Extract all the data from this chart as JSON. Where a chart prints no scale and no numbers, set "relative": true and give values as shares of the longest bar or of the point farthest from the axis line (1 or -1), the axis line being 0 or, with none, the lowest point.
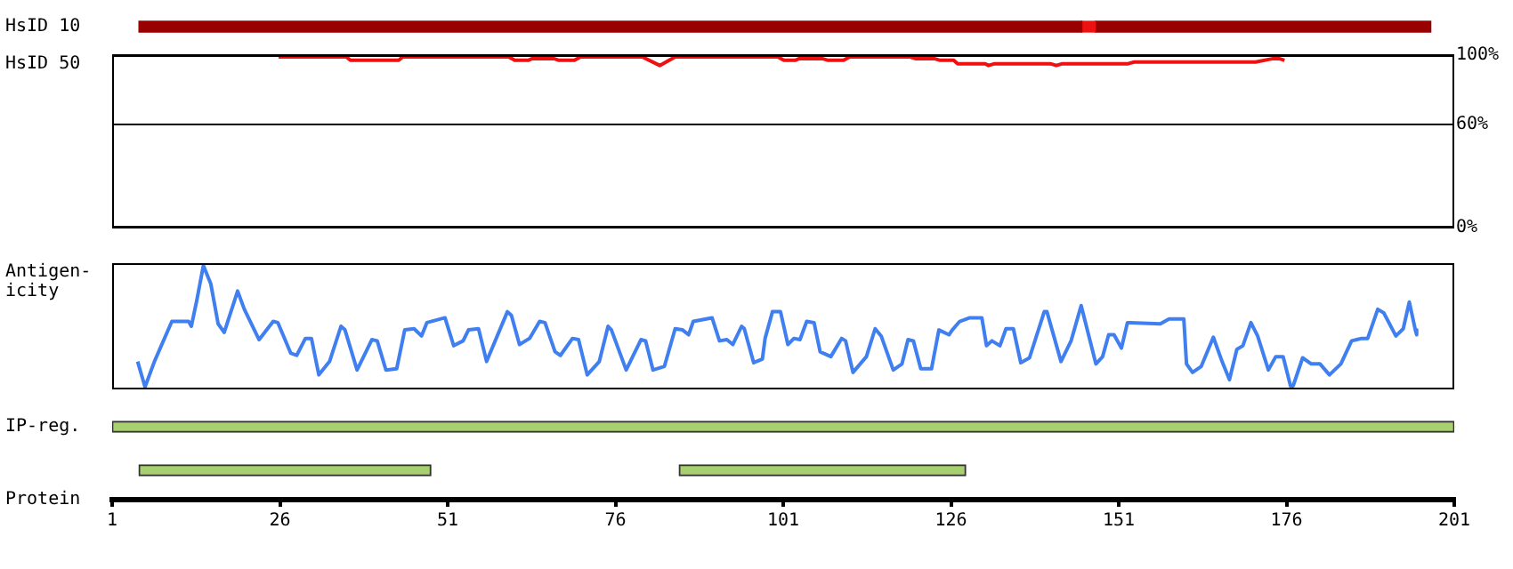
{
  "chart_data": [
    {
      "type": "bar",
      "orientation": "horizontal",
      "categories": [
        "HsID 10"
      ],
      "series": [
        {
          "color": "#990000",
          "base": [
            5
          ],
          "values": [
            140.5
          ]
        },
        {
          "color": "#ee1111",
          "base": [
            145.5
          ],
          "values": [
            2
          ]
        },
        {
          "color": "#990000",
          "base": [
            147.5
          ],
          "values": [
            50
          ]
        }
      ],
      "xlim": [
        1,
        201
      ],
      "tick_labels": "y"
    },
    {
      "type": "line",
      "ylabel": "HsID 50",
      "series": [
        {
          "color": "#ee1111",
          "x": [
            25.8,
            35.9,
            36.5,
            43.7,
            44.3,
            60.1,
            61.0,
            63.0,
            63.6,
            66.8,
            67.6,
            69.9,
            70.8,
            80.0,
            82.6,
            84.9,
            100.2,
            101.1,
            102.8,
            103.4,
            106.8,
            107.7,
            110.0,
            110.9,
            119.8,
            120.7,
            123.5,
            124.4,
            126.4,
            127.0,
            131.1,
            131.6,
            132.5,
            140.8,
            141.7,
            142.6,
            152.4,
            153.3,
            171.4,
            174.0,
            174.9,
            175.7
          ],
          "values": [
            99,
            99,
            97,
            97,
            99,
            99,
            97,
            97,
            98,
            98,
            97,
            97,
            99,
            99,
            94,
            99,
            99,
            97,
            97,
            98,
            98,
            97,
            97,
            99,
            99,
            98,
            98,
            97,
            97,
            95,
            95,
            94,
            95,
            95,
            94,
            95,
            95,
            96,
            96,
            98,
            98,
            97
          ]
        }
      ],
      "xlim": [
        1,
        201
      ],
      "ylim": [
        0,
        100
      ],
      "yticks": [
        {
          "value": 0,
          "label": "0%"
        },
        {
          "value": 60,
          "label": "60%"
        },
        {
          "value": 100,
          "label": "100%"
        }
      ],
      "grid": "y",
      "tick_labels": "y",
      "marker": "none"
    },
    {
      "type": "line",
      "relative": true,
      "ylabel": "Antigen-\nicity",
      "series": [
        {
          "color": "#3f7ff0",
          "x": [
            4.8,
            5.9,
            7.3,
            9.9,
            12.4,
            12.8,
            13.6,
            14.6,
            15.7,
            16.8,
            17.7,
            19.7,
            20.7,
            22.9,
            25.0,
            25.7,
            27.6,
            28.5,
            29.8,
            30.7,
            31.8,
            33.4,
            35.1,
            35.7,
            37.5,
            39.7,
            40.5,
            41.8,
            43.4,
            44.6,
            46.0,
            47.1,
            47.9,
            50.6,
            51.9,
            53.3,
            54.1,
            55.6,
            56.8,
            59.9,
            60.5,
            61.7,
            63.2,
            64.7,
            65.5,
            67.0,
            67.8,
            69.6,
            70.5,
            71.8,
            73.6,
            74.9,
            75.4,
            77.6,
            79.8,
            80.5,
            81.6,
            83.3,
            84.9,
            86.0,
            86.9,
            87.6,
            90.4,
            91.5,
            92.6,
            93.5,
            94.8,
            95.2,
            96.6,
            97.9,
            98.3,
            99.4,
            100.6,
            101.7,
            102.6,
            103.5,
            104.5,
            105.6,
            106.5,
            108.1,
            109.7,
            110.3,
            111.4,
            113.4,
            114.7,
            115.6,
            117.4,
            118.7,
            119.6,
            120.4,
            121.5,
            123.1,
            124.2,
            125.7,
            126.2,
            127.3,
            128.8,
            130.6,
            131.3,
            132.1,
            133.3,
            134.2,
            135.3,
            136.4,
            137.7,
            139.9,
            140.3,
            142.4,
            143.9,
            145.4,
            147.6,
            148.6,
            149.5,
            150.3,
            151.4,
            152.3,
            157.2,
            158.5,
            160.7,
            161.1,
            162.0,
            163.3,
            165.1,
            166.4,
            167.5,
            168.6,
            169.5,
            170.7,
            171.7,
            173.3,
            174.4,
            175.5,
            176.6,
            177.0,
            178.4,
            179.7,
            181.0,
            182.4,
            184.1,
            185.7,
            187.2,
            188.1,
            189.6,
            190.5,
            192.3,
            193.4,
            194.3,
            195.2,
            195.4
          ],
          "values": [
            0.21,
            0.0,
            0.21,
            0.54,
            0.54,
            0.5,
            0.71,
            1.0,
            0.85,
            0.52,
            0.45,
            0.79,
            0.64,
            0.39,
            0.54,
            0.53,
            0.28,
            0.26,
            0.4,
            0.4,
            0.1,
            0.21,
            0.5,
            0.47,
            0.14,
            0.39,
            0.38,
            0.14,
            0.15,
            0.47,
            0.48,
            0.42,
            0.53,
            0.57,
            0.34,
            0.38,
            0.47,
            0.48,
            0.21,
            0.62,
            0.59,
            0.35,
            0.4,
            0.54,
            0.53,
            0.29,
            0.26,
            0.4,
            0.39,
            0.1,
            0.21,
            0.5,
            0.47,
            0.14,
            0.39,
            0.38,
            0.14,
            0.17,
            0.48,
            0.47,
            0.43,
            0.54,
            0.57,
            0.38,
            0.39,
            0.35,
            0.5,
            0.48,
            0.2,
            0.23,
            0.4,
            0.62,
            0.62,
            0.35,
            0.4,
            0.39,
            0.54,
            0.53,
            0.29,
            0.25,
            0.4,
            0.38,
            0.12,
            0.25,
            0.48,
            0.42,
            0.14,
            0.19,
            0.39,
            0.38,
            0.15,
            0.15,
            0.47,
            0.43,
            0.47,
            0.54,
            0.57,
            0.57,
            0.34,
            0.38,
            0.34,
            0.48,
            0.48,
            0.2,
            0.24,
            0.62,
            0.62,
            0.21,
            0.38,
            0.67,
            0.19,
            0.25,
            0.43,
            0.43,
            0.32,
            0.53,
            0.52,
            0.56,
            0.56,
            0.19,
            0.12,
            0.17,
            0.41,
            0.21,
            0.06,
            0.31,
            0.34,
            0.53,
            0.42,
            0.14,
            0.25,
            0.25,
            0.01,
            0.01,
            0.24,
            0.19,
            0.19,
            0.1,
            0.19,
            0.38,
            0.4,
            0.4,
            0.64,
            0.61,
            0.42,
            0.48,
            0.7,
            0.47,
            0.43
          ]
        }
      ],
      "xlim": [
        1,
        201
      ],
      "tick_labels": false,
      "marker": "none"
    },
    {
      "type": "bar",
      "orientation": "horizontal",
      "categories": [
        "IP-reg."
      ],
      "series": [
        {
          "color": "#a8d070",
          "base": [
            1
          ],
          "values": [
            200
          ]
        }
      ],
      "xlim": [
        1,
        201
      ],
      "tick_labels": "y"
    },
    {
      "type": "bar",
      "orientation": "horizontal",
      "categories": [
        null
      ],
      "series": [
        {
          "color": "#a8d070",
          "base": [
            5
          ],
          "values": [
            43.5
          ]
        },
        {
          "color": "#a8d070",
          "base": [
            85.5
          ],
          "values": [
            42.7
          ]
        }
      ],
      "xlim": [
        1,
        201
      ],
      "xticks": [
        1,
        26,
        51,
        76,
        101,
        126,
        151,
        176,
        201
      ],
      "xlabel": "Protein",
      "tick_labels": "x"
    }
  ]
}
